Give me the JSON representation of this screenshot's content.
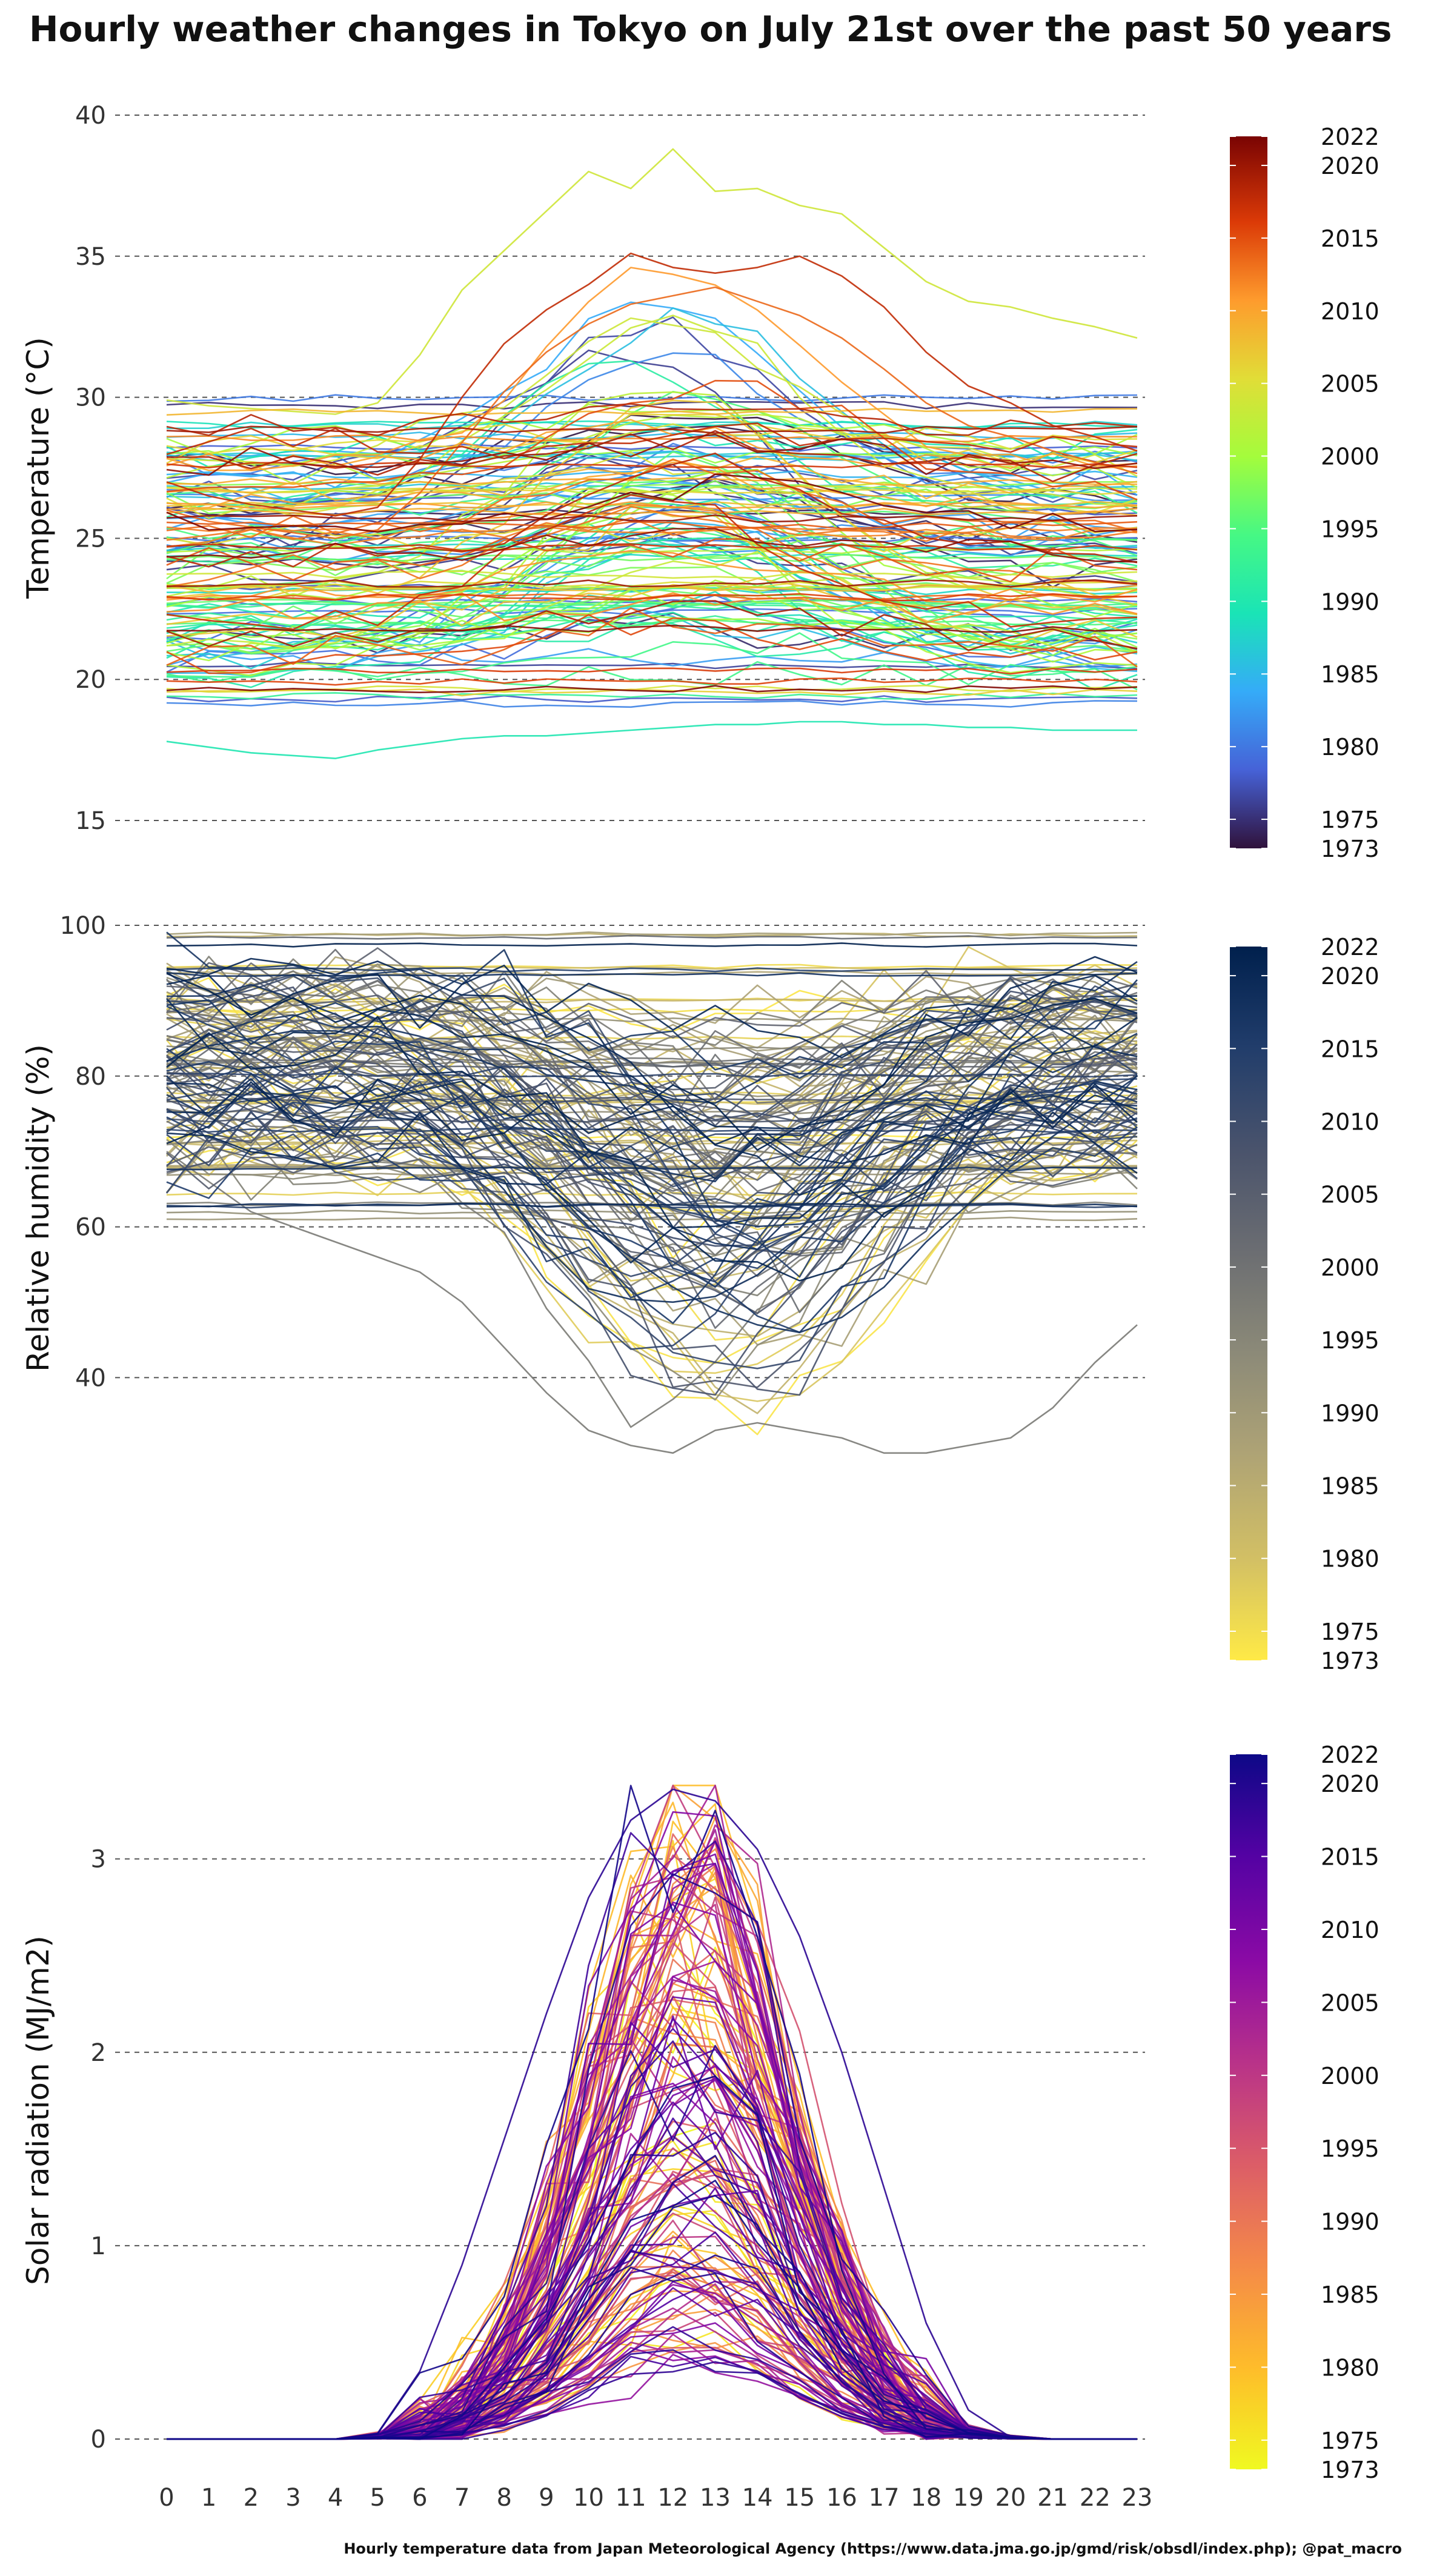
{
  "title": "Hourly weather changes in Tokyo on July 21st over the past 50 years",
  "caption": "Hourly temperature data from Japan Meteorological Agency (https://www.data.jma.go.jp/gmd/risk/obsdl/index.php); @pat_macro",
  "chart_data": [
    {
      "type": "line",
      "panel": "temperature",
      "ylabel": "Temperature (°C)",
      "xlabel": "",
      "x": [
        0,
        1,
        2,
        3,
        4,
        5,
        6,
        7,
        8,
        9,
        10,
        11,
        12,
        13,
        14,
        15,
        16,
        17,
        18,
        19,
        20,
        21,
        22,
        23
      ],
      "ylim": [
        15,
        40
      ],
      "yticks": [
        15,
        20,
        25,
        30,
        35,
        40
      ],
      "grid": "horizontal dashed",
      "legend": "colorbar right",
      "colorbar": {
        "labels": [
          "2022",
          "2020",
          "2015",
          "2010",
          "2005",
          "2000",
          "1995",
          "1990",
          "1985",
          "1980",
          "1975",
          "1973"
        ],
        "range": [
          1973,
          2022
        ],
        "colors": [
          "#7a0403",
          "#db3a07",
          "#fe9b2d",
          "#e1dd37",
          "#a4fc3c",
          "#46f884",
          "#1ae4b6",
          "#35abf8",
          "#4662d7",
          "#30123b"
        ]
      },
      "series_count": 150,
      "series_example": [
        {
          "year": 2004,
          "values": [
            29.9,
            29.7,
            29.6,
            29.5,
            29.4,
            29.8,
            31.5,
            33.8,
            35.2,
            36.6,
            38.0,
            37.4,
            38.8,
            37.3,
            37.4,
            36.8,
            36.5,
            35.3,
            34.1,
            33.4,
            33.2,
            32.8,
            32.5,
            32.1
          ]
        },
        {
          "year": 1990,
          "values": [
            17.8,
            17.6,
            17.4,
            17.3,
            17.2,
            17.5,
            17.7,
            17.9,
            18.0,
            18.0,
            18.1,
            18.2,
            18.3,
            18.4,
            18.4,
            18.5,
            18.5,
            18.4,
            18.4,
            18.3,
            18.3,
            18.2,
            18.2,
            18.2
          ]
        },
        {
          "year": 2018,
          "values": [
            27.0,
            26.5,
            26.2,
            26.0,
            25.8,
            26.1,
            27.8,
            30.0,
            31.9,
            33.1,
            34.0,
            35.1,
            34.6,
            34.4,
            34.6,
            35.0,
            34.3,
            33.2,
            31.6,
            30.4,
            29.8,
            29.0,
            28.6,
            28.1
          ]
        },
        {
          "year": 2014,
          "values": [
            26.0,
            25.6,
            25.4,
            25.2,
            25.0,
            25.3,
            26.6,
            28.4,
            30.2,
            31.6,
            32.6,
            33.3,
            33.6,
            33.9,
            33.4,
            32.9,
            32.1,
            31.0,
            29.8,
            29.0,
            28.6,
            28.1,
            27.7,
            27.3
          ]
        }
      ]
    },
    {
      "type": "line",
      "panel": "humidity",
      "ylabel": "Relative humidity (%)",
      "xlabel": "",
      "x": [
        0,
        1,
        2,
        3,
        4,
        5,
        6,
        7,
        8,
        9,
        10,
        11,
        12,
        13,
        14,
        15,
        16,
        17,
        18,
        19,
        20,
        21,
        22,
        23
      ],
      "ylim": [
        25,
        100
      ],
      "yticks": [
        40,
        60,
        80,
        100
      ],
      "grid": "horizontal dashed",
      "legend": "colorbar right",
      "colorbar": {
        "labels": [
          "2022",
          "2020",
          "2015",
          "2010",
          "2005",
          "2000",
          "1995",
          "1990",
          "1985",
          "1980",
          "1975",
          "1973"
        ],
        "range": [
          1973,
          2022
        ],
        "colors": [
          "#00204d",
          "#213d6b",
          "#4b546c",
          "#6c6e72",
          "#8c8a78",
          "#aea375",
          "#d3c064",
          "#ffea46"
        ]
      },
      "series_count": 150,
      "series_example": [
        {
          "year": 1998,
          "values": [
            70,
            66,
            62,
            60,
            58,
            56,
            54,
            50,
            44,
            38,
            33,
            31,
            30,
            33,
            34,
            33,
            32,
            30,
            30,
            31,
            32,
            36,
            42,
            47
          ]
        },
        {
          "year": 2018,
          "values": [
            82,
            84,
            85,
            86,
            86,
            85,
            82,
            78,
            72,
            66,
            60,
            56,
            52,
            49,
            47,
            46,
            48,
            52,
            58,
            63,
            68,
            72,
            76,
            80
          ]
        }
      ]
    },
    {
      "type": "line",
      "panel": "solar_radiation",
      "ylabel": "Solar radiation (MJ/m2)",
      "xlabel": "",
      "x": [
        0,
        1,
        2,
        3,
        4,
        5,
        6,
        7,
        8,
        9,
        10,
        11,
        12,
        13,
        14,
        15,
        16,
        17,
        18,
        19,
        20,
        21,
        22,
        23
      ],
      "xticks": [
        "0",
        "1",
        "2",
        "3",
        "4",
        "5",
        "6",
        "7",
        "8",
        "9",
        "10",
        "11",
        "12",
        "13",
        "14",
        "15",
        "16",
        "17",
        "18",
        "19",
        "20",
        "21",
        "22",
        "23"
      ],
      "ylim": [
        0,
        3.4
      ],
      "yticks": [
        0,
        1,
        2,
        3
      ],
      "grid": "horizontal dashed",
      "legend": "colorbar right",
      "colorbar": {
        "labels": [
          "2022",
          "2020",
          "2015",
          "2010",
          "2005",
          "2000",
          "1995",
          "1990",
          "1985",
          "1980",
          "1975",
          "1973"
        ],
        "range": [
          1973,
          2022
        ],
        "colors": [
          "#0d0887",
          "#5302a3",
          "#8b0aa5",
          "#b83289",
          "#db5c68",
          "#f48849",
          "#febd2a",
          "#f0f921"
        ]
      },
      "series_count": 150,
      "series_example": [
        {
          "year": 2019,
          "values": [
            0,
            0,
            0,
            0,
            0,
            0.03,
            0.35,
            0.9,
            1.55,
            2.2,
            2.8,
            3.2,
            3.36,
            3.3,
            3.05,
            2.6,
            2.0,
            1.3,
            0.6,
            0.15,
            0.01,
            0,
            0,
            0
          ]
        },
        {
          "year": 1978,
          "values": [
            0,
            0,
            0,
            0,
            0,
            0.02,
            0.2,
            0.5,
            0.8,
            1.1,
            1.3,
            1.45,
            1.5,
            1.4,
            1.3,
            1.1,
            0.8,
            0.5,
            0.25,
            0.06,
            0,
            0,
            0,
            0
          ]
        }
      ]
    }
  ]
}
